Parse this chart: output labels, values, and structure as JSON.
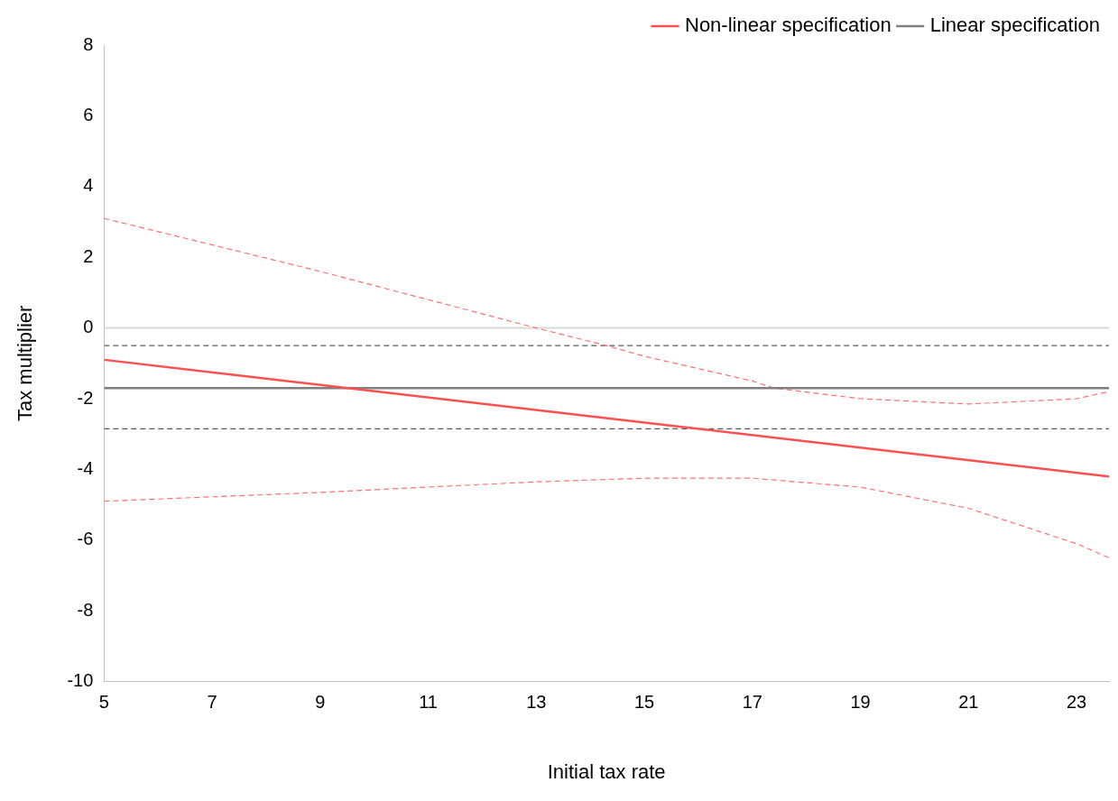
{
  "chart_data": {
    "type": "line",
    "xlabel": "Initial tax rate",
    "ylabel": "Tax multiplier",
    "xlim": [
      5,
      23.6
    ],
    "ylim": [
      -10,
      8
    ],
    "xticks": [
      5,
      7,
      9,
      11,
      13,
      15,
      17,
      19,
      21,
      23
    ],
    "yticks": [
      -10,
      -8,
      -6,
      -4,
      -2,
      0,
      2,
      4,
      6,
      8
    ],
    "grid": false,
    "legend": "top right",
    "marker": "none",
    "ref_lines": [
      {
        "axis": "y",
        "value": 0,
        "color": "#d9d9d9"
      }
    ],
    "series": [
      {
        "name": "Non-linear specification",
        "color": "#ff5050",
        "x": [
          5,
          23.6
        ],
        "values": [
          -0.9,
          -4.2
        ],
        "line_style": "solid"
      },
      {
        "name": "Linear specification",
        "color": "#7f7f7f",
        "x": [
          5,
          23.6
        ],
        "values": [
          -1.7,
          -1.7
        ],
        "line_style": "solid"
      },
      {
        "color": "#ff7070",
        "x": [
          5,
          9,
          11,
          13,
          14.3,
          15,
          17,
          17.4,
          19,
          21,
          23,
          23.6
        ],
        "values": [
          3.1,
          1.6,
          0.8,
          0,
          -0.5,
          -0.8,
          -1.5,
          -1.7,
          -2.0,
          -2.15,
          -2.0,
          -1.8
        ],
        "line_style": "dashed"
      },
      {
        "color": "#ff7070",
        "x": [
          5,
          9,
          13,
          15,
          17,
          19,
          21,
          23,
          23.6
        ],
        "values": [
          -4.9,
          -4.65,
          -4.35,
          -4.25,
          -4.25,
          -4.5,
          -5.1,
          -6.1,
          -6.5
        ],
        "line_style": "dashed"
      },
      {
        "color": "#595959",
        "x": [
          5,
          23.6
        ],
        "values": [
          -0.5,
          -0.5
        ],
        "line_style": "dashed"
      },
      {
        "color": "#595959",
        "x": [
          5,
          23.6
        ],
        "values": [
          -2.85,
          -2.85
        ],
        "line_style": "dashed"
      }
    ]
  }
}
